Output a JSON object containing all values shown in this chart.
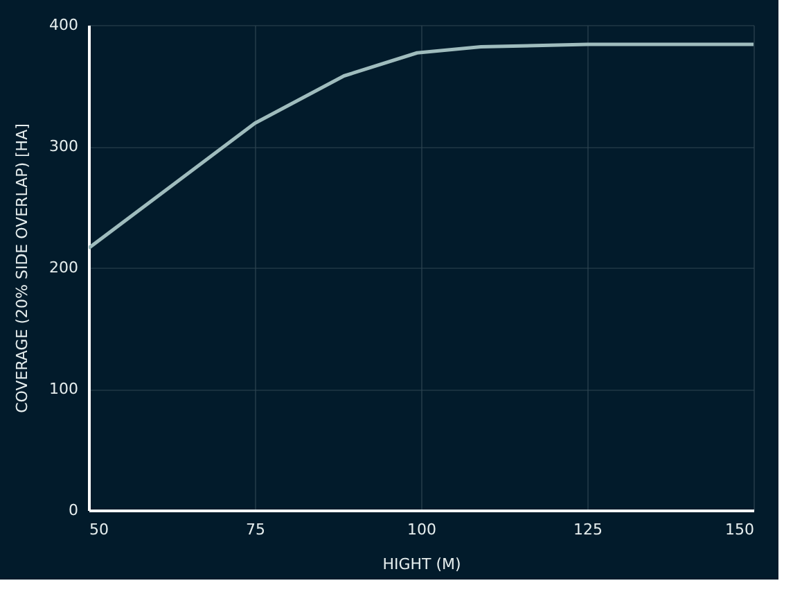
{
  "chart_data": {
    "type": "line",
    "xlabel": "HIGHT (M)",
    "ylabel": "COVERAGE (20% SIDE OVERLAP) [HA]",
    "x": [
      50,
      75,
      88.4,
      99.4,
      109,
      125,
      150
    ],
    "series": [
      {
        "color": "#9fbcbd",
        "values": [
          216,
          319,
          358,
          377,
          382,
          384,
          384
        ]
      }
    ],
    "xlim": [
      50,
      150
    ],
    "xticks": [
      50,
      75,
      100,
      125,
      150
    ],
    "ylim": [
      0,
      400
    ],
    "yticks": [
      0,
      100,
      200,
      300,
      400
    ],
    "grid": true,
    "marker": "none",
    "line_style": "solid"
  }
}
